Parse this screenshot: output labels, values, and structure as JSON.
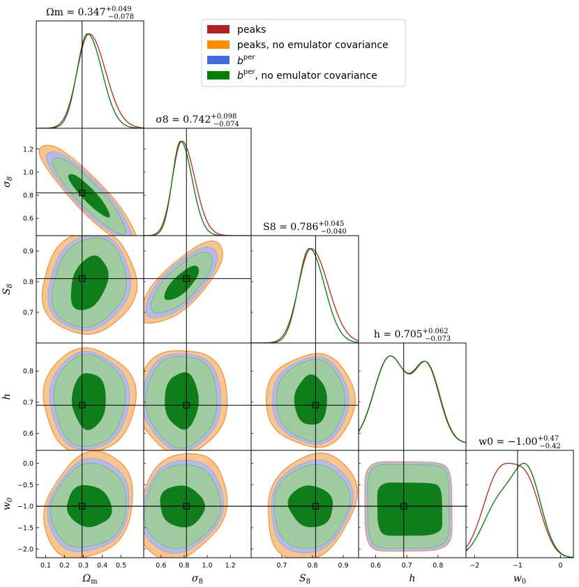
{
  "chart_data": {
    "type": "corner",
    "parameters": [
      {
        "id": "Om",
        "axis_label": "Ωm",
        "title": "Ωm = 0.347",
        "plus": "+0.049",
        "minus": "−0.078",
        "range": [
          0.05,
          0.62
        ],
        "ticks": [
          0.1,
          0.2,
          0.3,
          0.4,
          0.5
        ],
        "tick_labels": [
          "0.1",
          "0.2",
          "0.3",
          "0.4",
          "0.5"
        ],
        "truth": 0.293,
        "peak": 0.33,
        "sigma": 0.07
      },
      {
        "id": "s8",
        "axis_label": "σ8",
        "title": "σ8 = 0.742",
        "plus": "+0.098",
        "minus": "−0.074",
        "range": [
          0.45,
          1.38
        ],
        "ticks": [
          0.6,
          0.8,
          1.0,
          1.2
        ],
        "tick_labels": [
          "0.6",
          "0.8",
          "1.0",
          "1.2"
        ],
        "truth": 0.82,
        "peak": 0.78,
        "sigma": 0.09
      },
      {
        "id": "S8",
        "axis_label": "S8",
        "title": "S8 = 0.786",
        "plus": "+0.045",
        "minus": "−0.040",
        "range": [
          0.6,
          0.95
        ],
        "ticks": [
          0.7,
          0.8,
          0.9
        ],
        "tick_labels": [
          "0.7",
          "0.8",
          "0.9"
        ],
        "truth": 0.81,
        "peak": 0.795,
        "sigma": 0.045
      },
      {
        "id": "h",
        "axis_label": "h",
        "title": "h = 0.705",
        "plus": "+0.062",
        "minus": "−0.073",
        "range": [
          0.545,
          0.89
        ],
        "ticks": [
          0.6,
          0.7,
          0.8
        ],
        "tick_labels": [
          "0.6",
          "0.7",
          "0.8"
        ],
        "truth": 0.69,
        "peak": 0.705,
        "sigma": 0.07
      },
      {
        "id": "w0",
        "axis_label": "w0",
        "title": "w0 = −1.00",
        "plus": "+0.47",
        "minus": "−0.42",
        "range": [
          -2.2,
          0.3
        ],
        "ticks": [
          -2.0,
          -1.5,
          -1.0,
          -0.5,
          0.0
        ],
        "tick_labels": [
          "−2.0",
          "−1.5",
          "−1.0",
          "−0.5",
          "0.0"
        ],
        "truth": -1.0,
        "peak": -1.0,
        "sigma": 0.45
      }
    ],
    "w0_diag_ticks": [
      -2,
      -1,
      0
    ],
    "w0_diag_tick_labels": [
      "−2",
      "−1",
      "0"
    ],
    "series": [
      {
        "name": "peaks",
        "color": "#b22222"
      },
      {
        "name": "peaks, no emulator covariance",
        "color": "#ff8c00"
      },
      {
        "name": "b per",
        "name_base": "b",
        "name_sup": "per",
        "color": "#4169e1"
      },
      {
        "name": "b per, no emulator covariance",
        "name_base": "b",
        "name_sup": "per",
        "name_rest": ", no emulator covariance",
        "color": "#008000"
      }
    ],
    "contour_colors": {
      "orange_fill": "#f8c58d",
      "orange_edge": "#f08a3a",
      "blue_fill": "#b7b9e6",
      "blue_edge": "#9da8e8",
      "green_fill_95": "#a1cca1",
      "green_fill_68": "#0e7d1a",
      "green_edge": "#6fb36f"
    },
    "legend_placement": "top-right"
  }
}
